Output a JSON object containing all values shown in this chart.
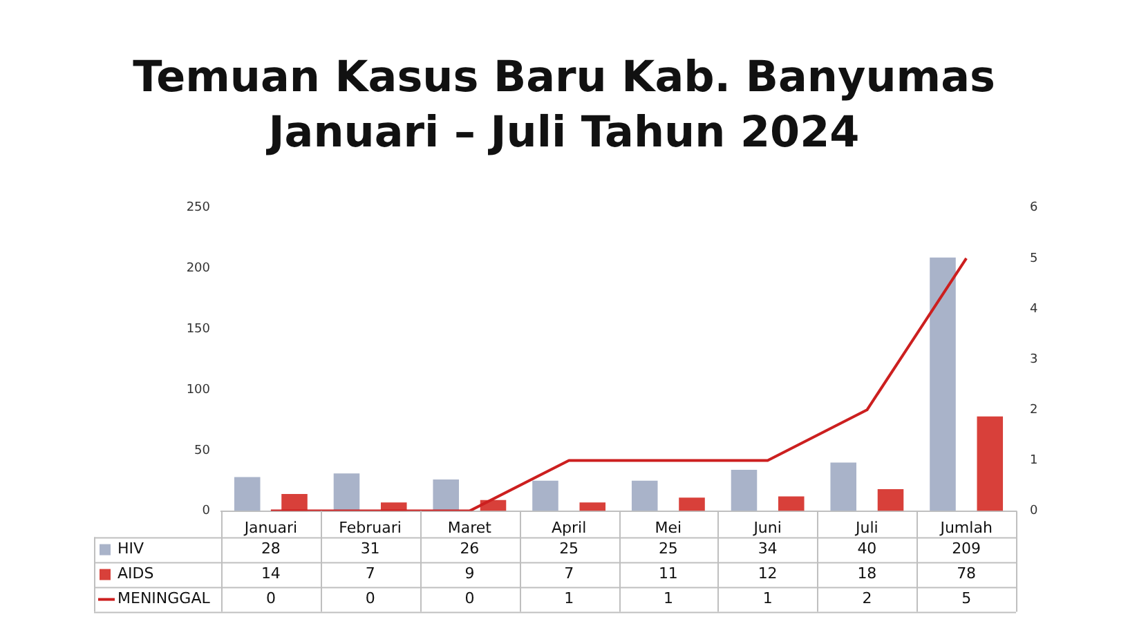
{
  "chart_data": {
    "type": "bar",
    "title": "Temuan Kasus Baru Kab. Banyumas\nJanuari – Juli Tahun 2024",
    "categories": [
      "Januari",
      "Februari",
      "Maret",
      "April",
      "Mei",
      "Juni",
      "Juli",
      "Jumlah"
    ],
    "series": [
      {
        "name": "HIV",
        "color": "#a9b3c9",
        "values": [
          28,
          31,
          26,
          25,
          25,
          34,
          40,
          209
        ]
      },
      {
        "name": "AIDS",
        "color": "#d8403a",
        "values": [
          14,
          7,
          9,
          7,
          11,
          12,
          18,
          78
        ]
      },
      {
        "name": "MENINGGAL",
        "type": "line",
        "axis": "y2",
        "color": "#cc1f1f",
        "values": [
          0,
          0,
          0,
          1,
          1,
          1,
          2,
          5
        ]
      }
    ],
    "ylim": [
      0,
      250
    ],
    "yticks": [
      0,
      50,
      100,
      150,
      200,
      250
    ],
    "y2lim": [
      0,
      6
    ],
    "y2ticks": [
      0,
      1,
      2,
      3,
      4,
      5,
      6
    ],
    "grid": false,
    "legend": "bottom",
    "data_labels": true,
    "marker": "none"
  }
}
